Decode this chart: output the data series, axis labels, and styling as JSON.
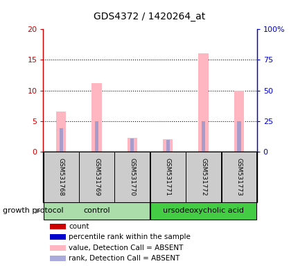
{
  "title": "GDS4372 / 1420264_at",
  "samples": [
    "GSM531768",
    "GSM531769",
    "GSM531770",
    "GSM531771",
    "GSM531772",
    "GSM531773"
  ],
  "pink_values": [
    6.5,
    11.2,
    2.3,
    2.0,
    16.1,
    10.0
  ],
  "blue_values": [
    3.8,
    5.0,
    2.1,
    1.9,
    5.0,
    5.0
  ],
  "left_ylim": [
    0,
    20
  ],
  "right_ylim": [
    0,
    100
  ],
  "left_yticks": [
    0,
    5,
    10,
    15,
    20
  ],
  "right_yticks": [
    0,
    25,
    50,
    75,
    100
  ],
  "left_yticklabels": [
    "0",
    "5",
    "10",
    "15",
    "20"
  ],
  "right_yticklabels": [
    "0",
    "25",
    "50",
    "75",
    "100%"
  ],
  "control_label": "control",
  "treatment_label": "ursodeoxycholic acid",
  "group_label": "growth protocol",
  "pink_color": "#FFB6C1",
  "blue_color": "#9999CC",
  "dark_red": "#CC0000",
  "dark_blue": "#0000CC",
  "control_box_color": "#AADDAA",
  "treatment_box_color": "#44CC44",
  "sample_box_color": "#CCCCCC",
  "legend_items": [
    {
      "label": "count",
      "color": "#CC0000"
    },
    {
      "label": "percentile rank within the sample",
      "color": "#0000CC"
    },
    {
      "label": "value, Detection Call = ABSENT",
      "color": "#FFB6C1"
    },
    {
      "label": "rank, Detection Call = ABSENT",
      "color": "#AAAADD"
    }
  ]
}
